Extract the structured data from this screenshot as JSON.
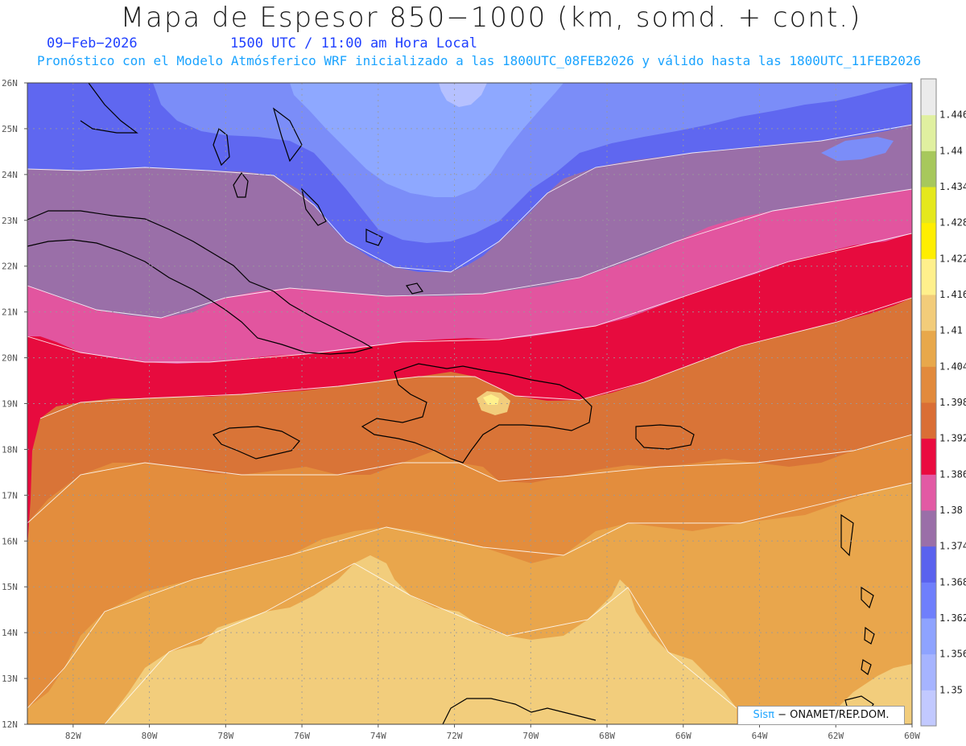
{
  "header": {
    "title": "Mapa de Espesor 850−1000 (km, somd. + cont.)",
    "date": "09−Feb−2026",
    "time": "1500 UTC / 11:00 am Hora Local",
    "subtitle": "Pronóstico con el Modelo Atmósferico WRF inicializado a las 1800UTC_08FEB2026 y válido hasta las  1800UTC_11FEB2026"
  },
  "credit": {
    "sis": "Sisπ",
    "org": "− ONAMET/REP.DOM."
  },
  "map": {
    "lat_labels": [
      "26N",
      "25N",
      "24N",
      "23N",
      "22N",
      "21N",
      "20N",
      "19N",
      "18N",
      "17N",
      "16N",
      "15N",
      "14N",
      "13N",
      "12N"
    ],
    "lon_labels": [
      "82W",
      "80W",
      "78W",
      "76W",
      "74W",
      "72W",
      "70W",
      "68W",
      "66W",
      "64W",
      "62W",
      "60W"
    ],
    "lat_range": [
      12,
      26
    ],
    "lon_range": [
      -83.2,
      -60
    ],
    "grid": true
  },
  "colorbar": {
    "levels": [
      "1.35",
      "1.356",
      "1.362",
      "1.368",
      "1.374",
      "1.38",
      "1.386",
      "1.392",
      "1.398",
      "1.404",
      "1.41",
      "1.416",
      "1.422",
      "1.428",
      "1.434",
      "1.44",
      "1.446"
    ],
    "colors": [
      "#c2c9ff",
      "#a6b4ff",
      "#8ea3ff",
      "#6f7ffc",
      "#5a62ee",
      "#9a6fa8",
      "#e25aa4",
      "#ea0b3f",
      "#da6e35",
      "#e28a3c",
      "#e8a84b",
      "#f2cc7a",
      "#fff08c",
      "#ffee00",
      "#e5e81c",
      "#a7c85c",
      "#e0f0a0",
      "#ebebeb"
    ]
  },
  "field_colors": {
    "c1350": "#b6c1ff",
    "c1356": "#8ea8ff",
    "c1362": "#7b8df8",
    "c1368": "#5f67f0",
    "c1374": "#9a6fa8",
    "c1380": "#e2559f",
    "c1386": "#e70b3e",
    "c1392": "#d97437",
    "c1398": "#e38d3d",
    "c1404": "#e9a64c",
    "c1410": "#f2cd7c"
  }
}
